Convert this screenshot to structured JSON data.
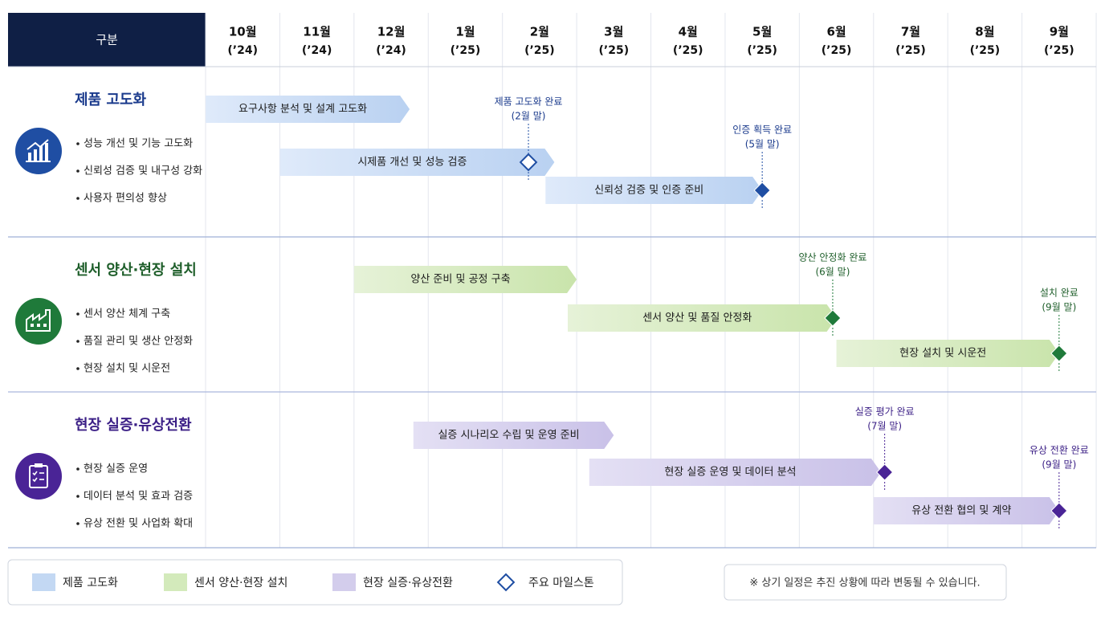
{
  "header": {
    "label": "구분"
  },
  "months": [
    {
      "month": "10월",
      "year": "(’24)"
    },
    {
      "month": "11월",
      "year": "(’24)"
    },
    {
      "month": "12월",
      "year": "(’24)"
    },
    {
      "month": "1월",
      "year": "(’25)"
    },
    {
      "month": "2월",
      "year": "(’25)"
    },
    {
      "month": "3월",
      "year": "(’25)"
    },
    {
      "month": "4월",
      "year": "(’25)"
    },
    {
      "month": "5월",
      "year": "(’25)"
    },
    {
      "month": "6월",
      "year": "(’25)"
    },
    {
      "month": "7월",
      "year": "(’25)"
    },
    {
      "month": "8월",
      "year": "(’25)"
    },
    {
      "month": "9월",
      "year": "(’25)"
    }
  ],
  "sections": [
    {
      "title": "제품 고도화",
      "color": "#1a3a8c",
      "bar_color": "#c3d8f3",
      "icon_color": "#1f4ea3",
      "bullets": [
        "성능 개선 및 기능 고도화",
        "신뢰성 검증 및 내구성 강화",
        "사용자 편의성 향상"
      ],
      "tasks": [
        {
          "label": "요구사항 분석 및 설계 고도화",
          "start": 0,
          "end": 2.75
        },
        {
          "label": "시제품 개선 및 성능 검증",
          "start": 1,
          "end": 4.7
        },
        {
          "label": "신뢰성 검증 및 인증 준비",
          "start": 4.58,
          "end": 7.5
        }
      ],
      "milestones": [
        {
          "label": "제품 고도화 완료",
          "note": "(2월 말)",
          "at": 4.35,
          "row": 1,
          "style": "hollow"
        },
        {
          "label": "인증 획득 완료",
          "note": "(5월 말)",
          "at": 7.5,
          "row": 2,
          "style": "filled"
        }
      ]
    },
    {
      "title": "센서 양산·현장 설치",
      "color": "#1e5e2a",
      "bar_color": "#d3eabb",
      "icon_color": "#1f7a3a",
      "bullets": [
        "센서 양산 체계 구축",
        "품질 관리 및 생산 안정화",
        "현장 설치 및 시운전"
      ],
      "tasks": [
        {
          "label": "양산 준비 및 공정 구축",
          "start": 2,
          "end": 5
        },
        {
          "label": "센서 양산 및 품질 안정화",
          "start": 4.88,
          "end": 8.5
        },
        {
          "label": "현장 설치 및 시운전",
          "start": 8.5,
          "end": 11.5
        }
      ],
      "milestones": [
        {
          "label": "양산 안정화 완료",
          "note": "(6월 말)",
          "at": 8.45,
          "row": 1,
          "style": "filled"
        },
        {
          "label": "설치 완료",
          "note": "(9월 말)",
          "at": 11.5,
          "row": 2,
          "style": "filled"
        }
      ]
    },
    {
      "title": "현장 실증·유상전환",
      "color": "#3b1f86",
      "bar_color": "#d3cdec",
      "icon_color": "#4a2496",
      "bullets": [
        "현장 실증 운영",
        "데이터 분석 및 효과 검증",
        "유상 전환 및 사업화 확대"
      ],
      "tasks": [
        {
          "label": "실증 시나리오 수립 및 운영 준비",
          "start": 2.8,
          "end": 5.5
        },
        {
          "label": "현장 실증 운영 및 데이터 분석",
          "start": 5.17,
          "end": 9.1
        },
        {
          "label": "유상 전환 협의 및 계약",
          "start": 9,
          "end": 11.5
        }
      ],
      "milestones": [
        {
          "label": "실증 평가 완료",
          "note": "(7월 말)",
          "at": 9.15,
          "row": 1,
          "style": "filled"
        },
        {
          "label": "유상 전환 완료",
          "note": "(9월 말)",
          "at": 11.5,
          "row": 2,
          "style": "filled"
        }
      ]
    }
  ],
  "legend": [
    "제품 고도화",
    "센서 양산·현장 설치",
    "현장 실증·유상전환",
    "주요 마일스톤"
  ],
  "note": "※ 상기 일정은 추진 상황에 따라 변동될 수 있습니다."
}
